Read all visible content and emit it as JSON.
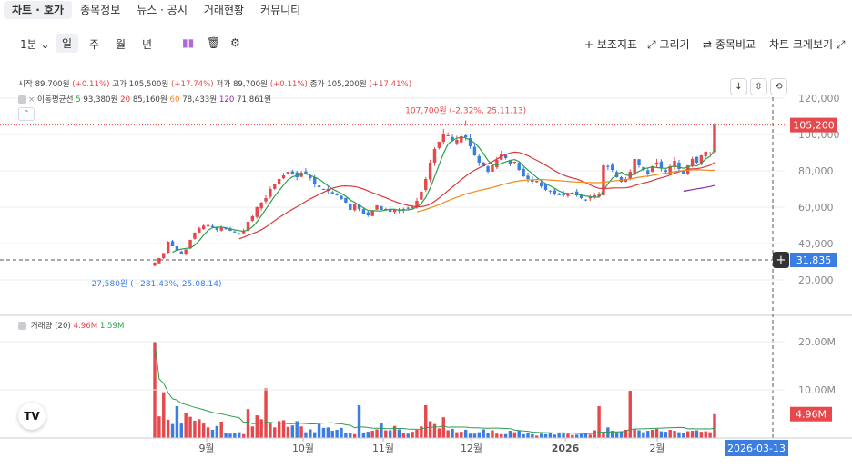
{
  "tabs": [
    "차트 · 호가",
    "종목정보",
    "뉴스 · 공시",
    "거래현황",
    "커뮤니티"
  ],
  "toolbar": {
    "interval": "1분",
    "periods": [
      "일",
      "주",
      "월",
      "년"
    ],
    "right_items": [
      "+ 보조지표",
      "⤢ 그리기",
      "⇄ 종목비교",
      "차트 크게보기 ⤢"
    ]
  },
  "ohlc": {
    "open_label": "시작",
    "open": "89,700원",
    "open_pct": "(+0.11%)",
    "high_label": "고가",
    "high": "105,500원",
    "high_pct": "(+17.74%)",
    "low_label": "저가",
    "low": "89,700원",
    "low_pct": "(+0.11%)",
    "close_label": "종가",
    "close": "105,200원",
    "close_pct": "(+17.41%)"
  },
  "ma": {
    "label": "이동평균선",
    "items": [
      {
        "period": "5",
        "value": "93,380원",
        "color": "#2e9e4f"
      },
      {
        "period": "20",
        "value": "85,160원",
        "color": "#d63b3b"
      },
      {
        "period": "60",
        "value": "78,433원",
        "color": "#f08c1e"
      },
      {
        "period": "120",
        "value": "71,861원",
        "color": "#8b2fa8"
      }
    ]
  },
  "volume_legend": {
    "label": "거래량 (20)",
    "value1": "4.96M",
    "value2": "1.59M"
  },
  "colors": {
    "up": "#e5484d",
    "down": "#3b7de0",
    "grid": "#eeeeee",
    "crosshair": "#555555"
  },
  "chart_data": {
    "type": "candlestick",
    "y_axis": {
      "ticks": [
        20000,
        40000,
        60000,
        80000,
        100000,
        120000
      ],
      "tick_labels": [
        "20,000",
        "40,000",
        "60,000",
        "80,000",
        "100,000",
        "120,000"
      ],
      "ylim": [
        8000,
        124000
      ]
    },
    "x_axis": {
      "labels": [
        "9월",
        "10월",
        "11월",
        "12월",
        "2026",
        "2월"
      ]
    },
    "volume_axis": {
      "tick_labels": [
        "20.00M",
        "10.00M"
      ],
      "ylim": [
        0,
        21.5
      ]
    },
    "last_price_label": "105,200",
    "crosshair_price_label": "31,835",
    "crosshair_date_label": "2026-03-13",
    "last_volume_label": "4.96M",
    "high_annotation": "107,700원 (-2.32%, 25.11.13)",
    "low_annotation": "27,580원 (+281.43%, 25.08.14)",
    "closes": [
      29500,
      32000,
      34800,
      41000,
      38500,
      36000,
      34500,
      36800,
      42000,
      46000,
      48500,
      49800,
      50200,
      49000,
      47500,
      48800,
      48000,
      47000,
      46200,
      45500,
      47000,
      52000,
      55000,
      60000,
      62500,
      65000,
      70000,
      73000,
      75500,
      77500,
      79500,
      78000,
      76500,
      79000,
      78500,
      76000,
      72500,
      71000,
      70000,
      69000,
      67500,
      66500,
      64500,
      62500,
      58500,
      61500,
      59000,
      56500,
      55500,
      58000,
      61000,
      58500,
      59000,
      57500,
      58500,
      58000,
      59000,
      59500,
      60000,
      63500,
      68500,
      75500,
      84500,
      92000,
      96000,
      100500,
      99500,
      96500,
      97000,
      99000,
      98500,
      93500,
      88500,
      84500,
      82500,
      79500,
      83000,
      86000,
      89000,
      87000,
      84000,
      85000,
      80500,
      77000,
      75500,
      74000,
      74500,
      71500,
      69500,
      69000,
      67500,
      67000,
      66500,
      67500,
      68000,
      66500,
      65000,
      64000,
      65500,
      66500,
      67000,
      83000,
      82500,
      80500,
      76500,
      74000,
      75500,
      79500,
      86500,
      83000,
      80500,
      78500,
      82500,
      84500,
      81500,
      79500,
      82500,
      85500,
      81000,
      78500,
      83000,
      86500,
      84500,
      88500,
      90500,
      89500,
      105200
    ],
    "volume_m": [
      20.0,
      4.5,
      9.5,
      3.8,
      2.9,
      6.6,
      3.0,
      5.2,
      4.4,
      3.6,
      3.9,
      3.0,
      2.2,
      1.7,
      2.5,
      3.4,
      1.1,
      0.9,
      1.0,
      1.2,
      0.8,
      6.0,
      2.4,
      4.7,
      3.9,
      10.3,
      3.0,
      2.2,
      3.5,
      3.7,
      2.3,
      2.6,
      3.5,
      2.4,
      1.2,
      1.8,
      1.2,
      2.9,
      2.1,
      2.2,
      1.5,
      1.7,
      2.1,
      1.0,
      1.1,
      0.8,
      6.8,
      1.1,
      1.3,
      1.5,
      1.8,
      3.1,
      1.6,
      1.6,
      2.5,
      1.8,
      1.0,
      0.9,
      1.3,
      1.7,
      2.4,
      6.8,
      3.5,
      2.9,
      2.0,
      4.3,
      1.6,
      1.9,
      1.2,
      1.3,
      1.7,
      0.9,
      0.9,
      1.2,
      1.8,
      1.1,
      1.6,
      0.9,
      0.8,
      0.8,
      1.5,
      1.2,
      1.6,
      0.8,
      1.0,
      0.8,
      0.5,
      0.9,
      0.8,
      1.1,
      0.7,
      1.0,
      1.1,
      0.9,
      0.6,
      0.7,
      0.8,
      0.9,
      0.7,
      1.6,
      6.6,
      1.1,
      2.2,
      1.5,
      1.2,
      1.4,
      1.7,
      9.8,
      1.8,
      1.6,
      1.2,
      1.5,
      1.7,
      1.9,
      1.4,
      1.3,
      1.7,
      1.5,
      1.2,
      1.1,
      1.4,
      1.5,
      1.6,
      1.3,
      1.4,
      1.2,
      4.96
    ]
  }
}
